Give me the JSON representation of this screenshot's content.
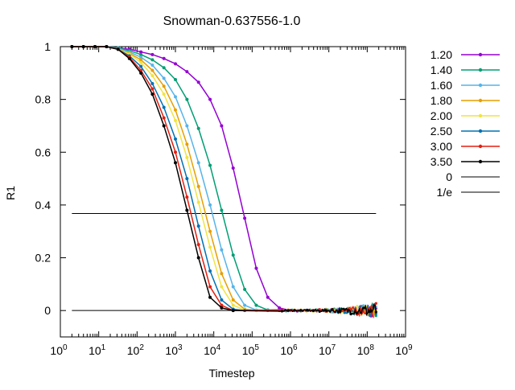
{
  "chart_data": {
    "type": "line",
    "title": "Snowman-0.637556-1.0",
    "xlabel": "Timestep",
    "ylabel": "R1",
    "xscale": "log",
    "xlim_exponent": [
      0,
      9
    ],
    "ylim": [
      -0.1,
      1.0
    ],
    "x_ticks": [
      {
        "base": "10",
        "exp": "0"
      },
      {
        "base": "10",
        "exp": "1"
      },
      {
        "base": "10",
        "exp": "2"
      },
      {
        "base": "10",
        "exp": "3"
      },
      {
        "base": "10",
        "exp": "4"
      },
      {
        "base": "10",
        "exp": "5"
      },
      {
        "base": "10",
        "exp": "6"
      },
      {
        "base": "10",
        "exp": "7"
      },
      {
        "base": "10",
        "exp": "8"
      },
      {
        "base": "10",
        "exp": "9"
      }
    ],
    "y_ticks": [
      {
        "value": 0,
        "label": "0"
      },
      {
        "value": 0.2,
        "label": "0.2"
      },
      {
        "value": 0.4,
        "label": "0.4"
      },
      {
        "value": 0.6,
        "label": "0.6"
      },
      {
        "value": 0.8,
        "label": "0.8"
      },
      {
        "value": 1,
        "label": "1"
      }
    ],
    "legend_position": "outside-right",
    "grid": false,
    "noise_region": {
      "x_from": 1000000,
      "x_to": 170000000,
      "amplitude": 0.01
    },
    "series": [
      {
        "name": "1.20",
        "color": "#9400d3",
        "points": [
          [
            2,
            1
          ],
          [
            4,
            1
          ],
          [
            8,
            1
          ],
          [
            16,
            1
          ],
          [
            32,
            0.995
          ],
          [
            63,
            0.99
          ],
          [
            126,
            0.98
          ],
          [
            251,
            0.97
          ],
          [
            501,
            0.955
          ],
          [
            1000,
            0.935
          ],
          [
            2000,
            0.905
          ],
          [
            4000,
            0.865
          ],
          [
            8000,
            0.8
          ],
          [
            16000,
            0.7
          ],
          [
            32000,
            0.54
          ],
          [
            64000,
            0.35
          ],
          [
            128000,
            0.16
          ],
          [
            256000,
            0.05
          ],
          [
            512000,
            0.01
          ],
          [
            1000000,
            0
          ]
        ]
      },
      {
        "name": "1.40",
        "color": "#009e73",
        "points": [
          [
            2,
            1
          ],
          [
            4,
            1
          ],
          [
            8,
            1
          ],
          [
            16,
            1
          ],
          [
            32,
            0.995
          ],
          [
            63,
            0.985
          ],
          [
            126,
            0.97
          ],
          [
            251,
            0.95
          ],
          [
            501,
            0.92
          ],
          [
            1000,
            0.875
          ],
          [
            2000,
            0.8
          ],
          [
            4000,
            0.69
          ],
          [
            8000,
            0.55
          ],
          [
            16000,
            0.38
          ],
          [
            32000,
            0.21
          ],
          [
            64000,
            0.08
          ],
          [
            128000,
            0.02
          ],
          [
            256000,
            0.002
          ],
          [
            512000,
            0
          ]
        ]
      },
      {
        "name": "1.60",
        "color": "#56b4e9",
        "points": [
          [
            2,
            1
          ],
          [
            4,
            1
          ],
          [
            8,
            1
          ],
          [
            16,
            1
          ],
          [
            32,
            0.993
          ],
          [
            63,
            0.98
          ],
          [
            126,
            0.96
          ],
          [
            251,
            0.93
          ],
          [
            501,
            0.88
          ],
          [
            1000,
            0.81
          ],
          [
            2000,
            0.7
          ],
          [
            4000,
            0.56
          ],
          [
            8000,
            0.4
          ],
          [
            16000,
            0.23
          ],
          [
            32000,
            0.09
          ],
          [
            64000,
            0.02
          ],
          [
            128000,
            0.002
          ],
          [
            256000,
            0
          ]
        ]
      },
      {
        "name": "1.80",
        "color": "#e69f00",
        "points": [
          [
            2,
            1
          ],
          [
            4,
            1
          ],
          [
            8,
            1
          ],
          [
            16,
            1
          ],
          [
            32,
            0.99
          ],
          [
            63,
            0.975
          ],
          [
            126,
            0.95
          ],
          [
            251,
            0.91
          ],
          [
            501,
            0.85
          ],
          [
            1000,
            0.76
          ],
          [
            2000,
            0.63
          ],
          [
            4000,
            0.47
          ],
          [
            8000,
            0.3
          ],
          [
            16000,
            0.14
          ],
          [
            32000,
            0.04
          ],
          [
            64000,
            0.005
          ],
          [
            128000,
            0
          ]
        ]
      },
      {
        "name": "2.00",
        "color": "#f0e442",
        "points": [
          [
            2,
            1
          ],
          [
            4,
            1
          ],
          [
            8,
            1
          ],
          [
            16,
            1
          ],
          [
            32,
            0.99
          ],
          [
            63,
            0.972
          ],
          [
            126,
            0.94
          ],
          [
            251,
            0.89
          ],
          [
            501,
            0.82
          ],
          [
            1000,
            0.72
          ],
          [
            2000,
            0.58
          ],
          [
            4000,
            0.41
          ],
          [
            8000,
            0.24
          ],
          [
            16000,
            0.09
          ],
          [
            32000,
            0.02
          ],
          [
            64000,
            0.002
          ],
          [
            128000,
            0
          ]
        ]
      },
      {
        "name": "2.50",
        "color": "#0072b2",
        "points": [
          [
            2,
            1
          ],
          [
            4,
            1
          ],
          [
            8,
            1
          ],
          [
            16,
            1
          ],
          [
            32,
            0.99
          ],
          [
            63,
            0.965
          ],
          [
            126,
            0.925
          ],
          [
            251,
            0.86
          ],
          [
            501,
            0.77
          ],
          [
            1000,
            0.65
          ],
          [
            2000,
            0.5
          ],
          [
            4000,
            0.32
          ],
          [
            8000,
            0.15
          ],
          [
            16000,
            0.04
          ],
          [
            32000,
            0.005
          ],
          [
            64000,
            0
          ]
        ]
      },
      {
        "name": "3.00",
        "color": "#e51e10",
        "points": [
          [
            2,
            1
          ],
          [
            4,
            1
          ],
          [
            8,
            1
          ],
          [
            16,
            1
          ],
          [
            32,
            0.99
          ],
          [
            63,
            0.96
          ],
          [
            126,
            0.91
          ],
          [
            251,
            0.84
          ],
          [
            501,
            0.73
          ],
          [
            1000,
            0.6
          ],
          [
            2000,
            0.43
          ],
          [
            4000,
            0.25
          ],
          [
            8000,
            0.09
          ],
          [
            16000,
            0.02
          ],
          [
            32000,
            0
          ]
        ]
      },
      {
        "name": "3.50",
        "color": "#000000",
        "points": [
          [
            2,
            1
          ],
          [
            4,
            1
          ],
          [
            8,
            1
          ],
          [
            16,
            1
          ],
          [
            32,
            0.99
          ],
          [
            63,
            0.955
          ],
          [
            126,
            0.9
          ],
          [
            251,
            0.82
          ],
          [
            501,
            0.7
          ],
          [
            1000,
            0.56
          ],
          [
            2000,
            0.38
          ],
          [
            4000,
            0.2
          ],
          [
            8000,
            0.05
          ],
          [
            16000,
            0.01
          ],
          [
            32000,
            0
          ]
        ]
      }
    ],
    "reference_lines": [
      {
        "name": "0",
        "value": 0,
        "color": "#000000"
      },
      {
        "name": "1/e",
        "value": 0.367879,
        "color": "#000000"
      }
    ]
  }
}
